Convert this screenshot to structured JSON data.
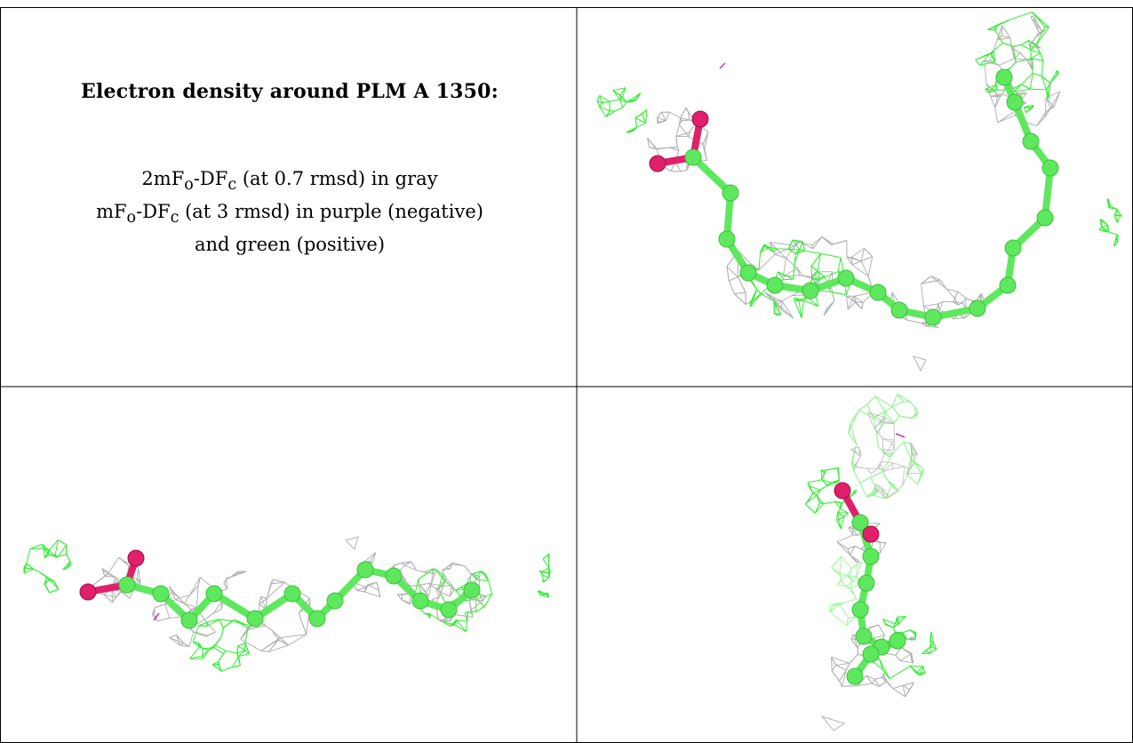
{
  "caption": {
    "title": "Electron density around PLM A 1350:",
    "lines": [
      {
        "prefix": "2mF",
        "sub1": "o",
        "mid": "-DF",
        "sub2": "c",
        "suffix": " (at 0.7 rmsd) in gray"
      },
      {
        "prefix": "mF",
        "sub1": "o",
        "mid": "-DF",
        "sub2": "c",
        "suffix": " (at 3 rmsd) in purple (negative)"
      },
      {
        "prefix": "",
        "sub1": "",
        "mid": "",
        "sub2": "",
        "suffix": "and green (positive)"
      }
    ]
  },
  "colors": {
    "map_2fofc": "#b3b3b3",
    "map_fofc_positive": "#33ee33",
    "map_fofc_negative": "#cc33aa",
    "carbon": "#5ee85e",
    "oxygen": "#e0206a",
    "grid_line": "#000000"
  },
  "views": [
    {
      "name": "view-1",
      "ligand": "PLM A 1350"
    },
    {
      "name": "view-2",
      "ligand": "PLM A 1350"
    },
    {
      "name": "view-3",
      "ligand": "PLM A 1350"
    }
  ]
}
